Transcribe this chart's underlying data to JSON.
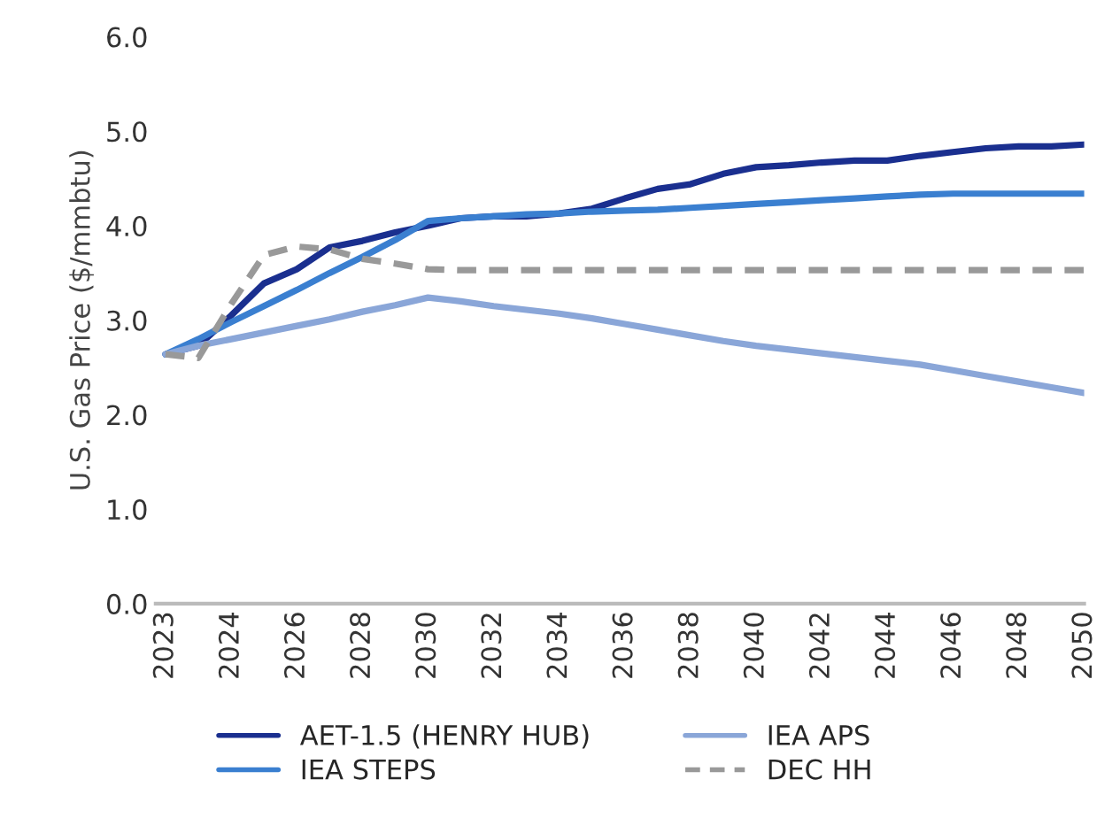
{
  "chart_data": {
    "type": "line",
    "ylabel": "U.S. Gas Price ($/mmbtu)",
    "categories": [
      "2023",
      null,
      "2024",
      null,
      "2026",
      null,
      "2028",
      null,
      "2030",
      null,
      "2032",
      null,
      "2034",
      null,
      "2036",
      null,
      "2038",
      null,
      "2040",
      null,
      "2042",
      null,
      "2044",
      null,
      "2046",
      null,
      "2048",
      null,
      "2050"
    ],
    "ylim": [
      0,
      6
    ],
    "yticks": [
      {
        "value": 0,
        "label": "0.0"
      },
      {
        "value": 1,
        "label": "1.0"
      },
      {
        "value": 2,
        "label": "2.0"
      },
      {
        "value": 3,
        "label": "3.0"
      },
      {
        "value": 4,
        "label": "4.0"
      },
      {
        "value": 5,
        "label": "5.0"
      },
      {
        "value": 6,
        "label": "6.0"
      }
    ],
    "grid": false,
    "legend": "bottom",
    "marker": "none",
    "series": [
      {
        "name": "AET-1.5 (HENRY HUB)",
        "color": "#1a2f8f",
        "line_style": "solid",
        "values": [
          2.64,
          2.73,
          3.05,
          3.39,
          3.54,
          3.77,
          3.84,
          3.93,
          4.0,
          4.08,
          4.1,
          4.1,
          4.13,
          4.18,
          4.29,
          4.39,
          4.44,
          4.55,
          4.62,
          4.64,
          4.67,
          4.69,
          4.69,
          4.74,
          4.78,
          4.82,
          4.84,
          4.84,
          4.86
        ]
      },
      {
        "name": "IEA STEPS",
        "color": "#3a7fd0",
        "line_style": "solid",
        "values": [
          2.64,
          2.8,
          2.98,
          3.15,
          3.32,
          3.5,
          3.67,
          3.85,
          4.05,
          4.08,
          4.1,
          4.12,
          4.13,
          4.15,
          4.16,
          4.17,
          4.19,
          4.21,
          4.23,
          4.25,
          4.27,
          4.29,
          4.31,
          4.33,
          4.34,
          4.34,
          4.34,
          4.34,
          4.34
        ]
      },
      {
        "name": "IEA APS",
        "color": "#8aa6d8",
        "line_style": "solid",
        "values": [
          2.64,
          2.73,
          2.8,
          2.87,
          2.94,
          3.01,
          3.09,
          3.16,
          3.24,
          3.2,
          3.15,
          3.11,
          3.07,
          3.02,
          2.96,
          2.9,
          2.84,
          2.78,
          2.73,
          2.69,
          2.65,
          2.61,
          2.57,
          2.53,
          2.47,
          2.41,
          2.35,
          2.29,
          2.23
        ]
      },
      {
        "name": "DEC HH",
        "color": "#999999",
        "line_style": "dashed",
        "values": [
          2.64,
          2.6,
          3.17,
          3.69,
          3.78,
          3.75,
          3.65,
          3.6,
          3.54,
          3.53,
          3.53,
          3.53,
          3.53,
          3.53,
          3.53,
          3.53,
          3.53,
          3.53,
          3.53,
          3.53,
          3.53,
          3.53,
          3.53,
          3.53,
          3.53,
          3.53,
          3.53,
          3.53,
          3.53
        ]
      }
    ]
  }
}
